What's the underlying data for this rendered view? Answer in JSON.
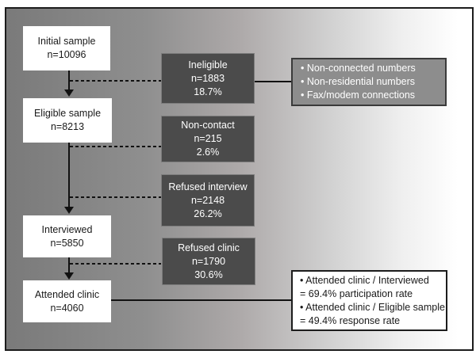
{
  "colors": {
    "frame_border": "#1c1c1c",
    "background_gradient_left": "#7a7a7a",
    "background_gradient_right": "#ffffff",
    "flow_box_background": "#ffffff",
    "flow_box_text": "#1a1a1a",
    "exclusion_box_background": "#4b4b4b",
    "exclusion_box_border": "#7d7d7d",
    "exclusion_box_text": "#ffffff",
    "reasons_box_background": "#8d8d8d",
    "reasons_box_border": "#3a3a3a",
    "rates_box_background": "#ffffff",
    "rates_box_border": "#1c1c1c",
    "connector_color": "#111111"
  },
  "flow_nodes": [
    {
      "label": "Initial sample",
      "n": "n=10096"
    },
    {
      "label": "Eligible sample",
      "n": "n=8213"
    },
    {
      "label": "Interviewed",
      "n": "n=5850"
    },
    {
      "label": "Attended clinic",
      "n": "n=4060"
    }
  ],
  "exclusion_nodes": [
    {
      "label": "Ineligible",
      "n": "n=1883",
      "pct": "18.7%"
    },
    {
      "label": "Non-contact",
      "n": "n=215",
      "pct": "2.6%"
    },
    {
      "label": "Refused interview",
      "n": "n=2148",
      "pct": "26.2%"
    },
    {
      "label": "Refused clinic",
      "n": "n=1790",
      "pct": "30.6%"
    }
  ],
  "ineligible_reasons": {
    "line1": "• Non-connected numbers",
    "line2": "• Non-residential numbers",
    "line3": "• Fax/modem connections"
  },
  "rates": {
    "line1": "• Attended clinic / Interviewed",
    "line2": "= 69.4% participation rate",
    "line3": "• Attended clinic / Eligible sample",
    "line4": "= 49.4% response rate"
  }
}
